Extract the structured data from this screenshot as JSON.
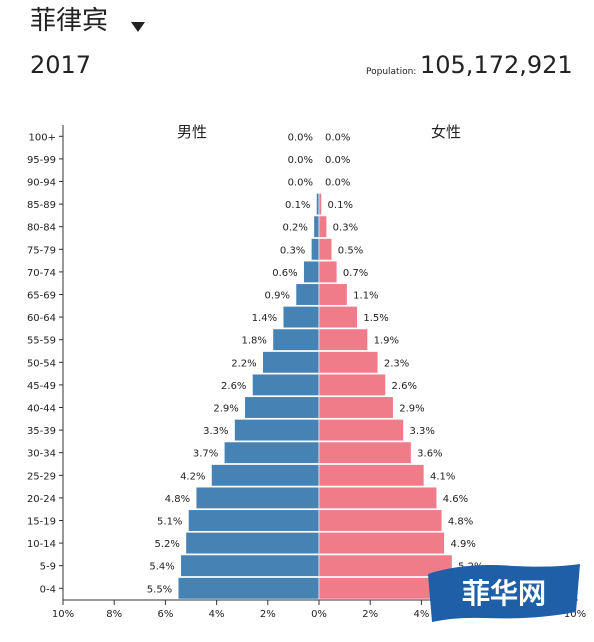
{
  "header": {
    "country": "菲律宾",
    "year": "2017",
    "population_label": "Population:",
    "population_value": "105,172,921"
  },
  "colors": {
    "male": "#4682b4",
    "female": "#f07c8a",
    "axis": "#333333"
  },
  "chart_data": {
    "type": "bar",
    "orientation": "horizontal",
    "title": "",
    "categories": [
      "100+",
      "95-99",
      "90-94",
      "85-89",
      "80-84",
      "75-79",
      "70-74",
      "65-69",
      "60-64",
      "55-59",
      "50-54",
      "45-49",
      "40-44",
      "35-39",
      "30-34",
      "25-29",
      "20-24",
      "15-19",
      "10-14",
      "5-9",
      "0-4"
    ],
    "series": [
      {
        "name": "男性",
        "values": [
          0.0,
          0.0,
          0.0,
          0.1,
          0.2,
          0.3,
          0.6,
          0.9,
          1.4,
          1.8,
          2.2,
          2.6,
          2.9,
          3.3,
          3.7,
          4.2,
          4.8,
          5.1,
          5.2,
          5.4,
          5.5
        ],
        "labels": [
          "0.0%",
          "0.0%",
          "0.0%",
          "0.1%",
          "0.2%",
          "0.3%",
          "0.6%",
          "0.9%",
          "1.4%",
          "1.8%",
          "2.2%",
          "2.6%",
          "2.9%",
          "3.3%",
          "3.7%",
          "4.2%",
          "4.8%",
          "5.1%",
          "5.2%",
          "5.4%",
          "5.5%"
        ]
      },
      {
        "name": "女性",
        "values": [
          0.0,
          0.0,
          0.0,
          0.1,
          0.3,
          0.5,
          0.7,
          1.1,
          1.5,
          1.9,
          2.3,
          2.6,
          2.9,
          3.3,
          3.6,
          4.1,
          4.6,
          4.8,
          4.9,
          5.2,
          5.3
        ],
        "labels": [
          "0.0%",
          "0.0%",
          "0.0%",
          "0.1%",
          "0.3%",
          "0.5%",
          "0.7%",
          "1.1%",
          "1.5%",
          "1.9%",
          "2.3%",
          "2.6%",
          "2.9%",
          "3.3%",
          "3.6%",
          "4.1%",
          "4.6%",
          "4.8%",
          "4.9%",
          "5.2%",
          "5.3%"
        ]
      }
    ],
    "xticks": [
      "10%",
      "8%",
      "6%",
      "4%",
      "2%",
      "0%",
      "2%",
      "4%",
      "6%",
      "8%",
      "10%"
    ],
    "xlim": [
      -10,
      10
    ],
    "grid": false
  },
  "watermark": {
    "text": "菲华网"
  }
}
